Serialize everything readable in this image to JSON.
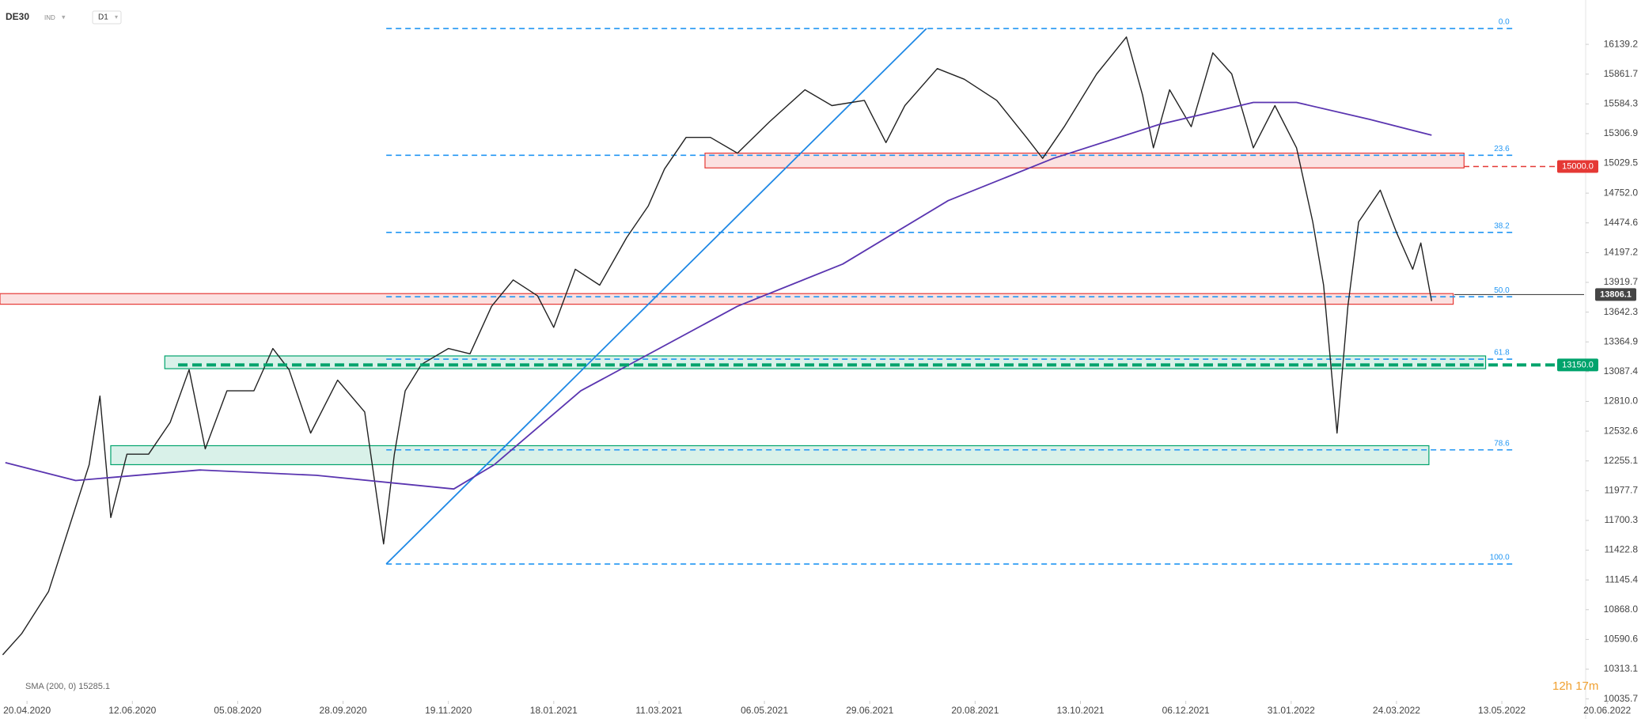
{
  "header": {
    "symbol": "DE30",
    "market": "IND",
    "interval": "D1"
  },
  "timer": "12h 17m",
  "chart_data": {
    "type": "line",
    "xlim": [
      -10,
      599
    ],
    "xticks": [
      {
        "value": 0,
        "label": "20.04.2020"
      },
      {
        "value": 39,
        "label": "12.06.2020"
      },
      {
        "value": 78,
        "label": "05.08.2020"
      },
      {
        "value": 117,
        "label": "28.09.2020"
      },
      {
        "value": 156,
        "label": "19.11.2020"
      },
      {
        "value": 195,
        "label": "18.01.2021"
      },
      {
        "value": 234,
        "label": "11.03.2021"
      },
      {
        "value": 273,
        "label": "06.05.2021"
      },
      {
        "value": 312,
        "label": "29.06.2021"
      },
      {
        "value": 351,
        "label": "20.08.2021"
      },
      {
        "value": 390,
        "label": "13.10.2021"
      },
      {
        "value": 429,
        "label": "06.12.2021"
      },
      {
        "value": 468,
        "label": "31.01.2022"
      },
      {
        "value": 507,
        "label": "24.03.2022"
      },
      {
        "value": 546,
        "label": "13.05.2022"
      },
      {
        "value": 585,
        "label": "20.06.2022"
      }
    ],
    "ylim": [
      9848.6,
      16552.8
    ],
    "yticks": [
      16139.2,
      15861.7,
      15584.3,
      15306.9,
      15029.5,
      {
        "value": 14752,
        "label": "14752.0"
      },
      14474.6,
      14197.2,
      13919.7,
      13642.3,
      13364.9,
      13087.4,
      {
        "value": 12810,
        "label": "12810.0"
      },
      12532.6,
      12255.1,
      11977.7,
      11700.3,
      11422.8,
      11145.4,
      {
        "value": 10868,
        "label": "10868.0"
      },
      10590.6,
      10313.1,
      10035.7
    ],
    "series": [
      {
        "color": "#222222",
        "x": [
          -9,
          -2,
          8,
          18,
          23,
          27,
          31,
          37,
          45,
          53,
          60,
          66,
          74,
          84,
          91,
          97,
          105,
          115,
          125,
          132,
          136,
          140,
          146,
          156,
          164,
          172,
          180,
          189,
          195,
          203,
          212,
          222,
          230,
          236,
          244,
          253,
          263,
          275,
          288,
          298,
          310,
          318,
          325,
          337,
          347,
          359,
          370,
          376,
          384,
          396,
          407,
          413,
          417,
          423,
          431,
          439,
          446,
          454,
          462,
          470,
          476,
          480,
          485,
          489,
          493,
          501,
          507,
          513,
          516,
          520
        ],
        "values": [
          10447,
          10644,
          11038,
          11826,
          12220,
          12860,
          11727,
          12318,
          12318,
          12614,
          13106,
          12367,
          12909,
          12909,
          13303,
          13106,
          12515,
          13008,
          12712,
          11481,
          12318,
          12909,
          13155,
          13303,
          13254,
          13697,
          13943,
          13795,
          13500,
          14042,
          13894,
          14337,
          14632,
          14977,
          15272,
          15272,
          15125,
          15420,
          15716,
          15568,
          15617,
          15223,
          15568,
          15913,
          15814,
          15617,
          15272,
          15076,
          15371,
          15863,
          16208,
          15666,
          15174,
          15716,
          15371,
          16060,
          15863,
          15174,
          15568,
          15174,
          14484,
          13894,
          12515,
          13697,
          14484,
          14780,
          14386,
          14042,
          14287,
          13746
        ]
      },
      {
        "name": "SMA (200, 0) 15285.1",
        "color": "#5a35b0",
        "x": [
          -8,
          18,
          64,
          107,
          158,
          173,
          205,
          263,
          302,
          341,
          380,
          419,
          454,
          470,
          497,
          520
        ],
        "values": [
          12239,
          12072,
          12170,
          12121,
          11993,
          12220,
          12909,
          13697,
          14091,
          14682,
          15076,
          15391,
          15598,
          15598,
          15440,
          15292
        ]
      }
    ],
    "zones": [
      {
        "x": [
          251,
          532
        ],
        "values": [
          15125,
          14987
        ],
        "color": "#e53935"
      },
      {
        "x": [
          -10,
          528
        ],
        "values": [
          13815,
          13716
        ],
        "color": "#e53935"
      },
      {
        "x": [
          51,
          540
        ],
        "values": [
          13234,
          13115
        ],
        "color": "#00a36c"
      },
      {
        "x": [
          31,
          519
        ],
        "values": [
          12397,
          12220
        ],
        "color": "#00a36c"
      }
    ],
    "fib": {
      "x": [
        133,
        550
      ],
      "color": "#2196f3",
      "levels": [
        {
          "label": "0.0",
          "value": 16287
        },
        {
          "label": "23.6",
          "value": 15105
        },
        {
          "label": "38.2",
          "value": 14386
        },
        {
          "label": "50.0",
          "value": 13786
        },
        {
          "label": "61.8",
          "value": 13204
        },
        {
          "label": "78.6",
          "value": 12358
        },
        {
          "label": "100.0",
          "value": 11294
        }
      ]
    },
    "trend_line": {
      "x": [
        133,
        333
      ],
      "values": [
        11294,
        16287
      ],
      "color": "#1e88e5"
    },
    "price_levels": [
      {
        "label": "15000.0",
        "value": 15000,
        "color": "#e53935"
      },
      {
        "label": "13150.0",
        "value": 13150,
        "color": "#00a36c"
      },
      {
        "label": "13806.1",
        "value": 13806.1,
        "color": "#454545"
      }
    ]
  }
}
